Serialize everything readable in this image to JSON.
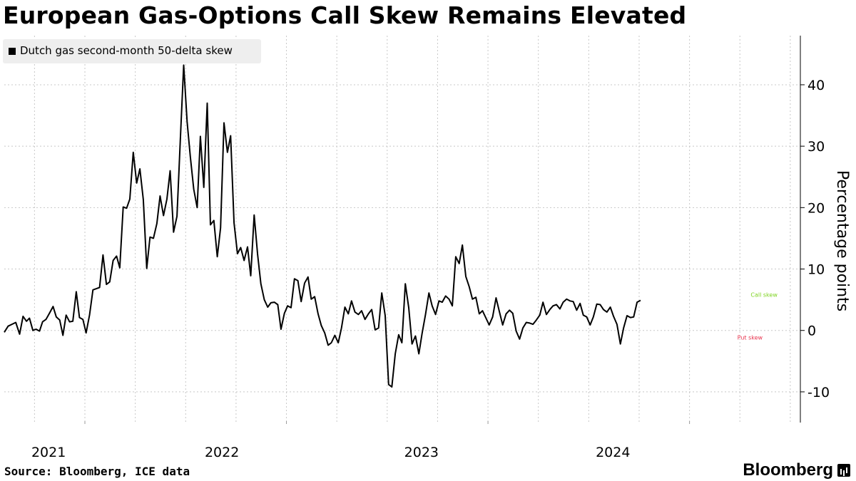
{
  "chart_data": {
    "type": "line",
    "title": "European Gas-Options Call Skew Remains Elevated",
    "xlabel": "",
    "ylabel": "Percentage points",
    "ylim": [
      -15,
      48
    ],
    "yticks": [
      -10,
      0,
      10,
      20,
      30,
      40
    ],
    "xlim": [
      2020.6,
      2024.55
    ],
    "xtick_labels": [
      {
        "label": "2021",
        "x": 2020.82
      },
      {
        "label": "2022",
        "x": 2021.68
      },
      {
        "label": "2023",
        "x": 2022.67
      },
      {
        "label": "2024",
        "x": 2023.62
      }
    ],
    "grid": true,
    "legend_placement": "top-left",
    "annotations": [
      {
        "text": "Call skew",
        "x": 2024.37,
        "y": 5.5,
        "color": "#7ed321"
      },
      {
        "text": "Put skew",
        "x": 2024.3,
        "y": -1.5,
        "color": "#e8344e"
      }
    ],
    "series": [
      {
        "name": "Dutch gas second-month 50-delta skew",
        "color": "#000000",
        "points": [
          [
            2020.6,
            -0.3
          ],
          [
            2020.619,
            0.7
          ],
          [
            2020.638,
            1.0
          ],
          [
            2020.657,
            1.3
          ],
          [
            2020.676,
            -0.6
          ],
          [
            2020.693,
            2.3
          ],
          [
            2020.71,
            1.5
          ],
          [
            2020.725,
            2.0
          ],
          [
            2020.742,
            0.0
          ],
          [
            2020.758,
            0.2
          ],
          [
            2020.775,
            -0.1
          ],
          [
            2020.79,
            1.4
          ],
          [
            2020.807,
            1.8
          ],
          [
            2020.824,
            2.8
          ],
          [
            2020.842,
            3.9
          ],
          [
            2020.858,
            2.2
          ],
          [
            2020.875,
            1.7
          ],
          [
            2020.891,
            -0.8
          ],
          [
            2020.907,
            2.5
          ],
          [
            2020.924,
            1.4
          ],
          [
            2020.94,
            1.5
          ],
          [
            2020.957,
            6.3
          ],
          [
            2020.973,
            2.1
          ],
          [
            2020.99,
            1.8
          ],
          [
            2021.006,
            -0.4
          ],
          [
            2021.023,
            2.5
          ],
          [
            2021.04,
            6.6
          ],
          [
            2021.057,
            6.8
          ],
          [
            2021.073,
            7.0
          ],
          [
            2021.09,
            12.3
          ],
          [
            2021.107,
            7.5
          ],
          [
            2021.123,
            7.9
          ],
          [
            2021.14,
            11.4
          ],
          [
            2021.157,
            12.1
          ],
          [
            2021.173,
            10.2
          ],
          [
            2021.19,
            20.1
          ],
          [
            2021.207,
            19.9
          ],
          [
            2021.223,
            21.4
          ],
          [
            2021.24,
            29.0
          ],
          [
            2021.257,
            24.0
          ],
          [
            2021.273,
            26.3
          ],
          [
            2021.29,
            21.3
          ],
          [
            2021.307,
            10.1
          ],
          [
            2021.323,
            15.2
          ],
          [
            2021.34,
            15.0
          ],
          [
            2021.357,
            17.4
          ],
          [
            2021.373,
            21.9
          ],
          [
            2021.39,
            18.7
          ],
          [
            2021.407,
            21.4
          ],
          [
            2021.423,
            26.0
          ],
          [
            2021.44,
            16.0
          ],
          [
            2021.457,
            18.6
          ],
          [
            2021.473,
            30.8
          ],
          [
            2021.49,
            43.2
          ],
          [
            2021.507,
            34.0
          ],
          [
            2021.523,
            28.3
          ],
          [
            2021.54,
            23.0
          ],
          [
            2021.557,
            20.0
          ],
          [
            2021.573,
            31.6
          ],
          [
            2021.59,
            23.3
          ],
          [
            2021.607,
            37.0
          ],
          [
            2021.623,
            17.2
          ],
          [
            2021.64,
            17.9
          ],
          [
            2021.657,
            12.0
          ],
          [
            2021.673,
            16.7
          ],
          [
            2021.69,
            33.8
          ],
          [
            2021.707,
            29.0
          ],
          [
            2021.723,
            31.7
          ],
          [
            2021.74,
            17.5
          ],
          [
            2021.757,
            12.5
          ],
          [
            2021.773,
            13.5
          ],
          [
            2021.79,
            11.4
          ],
          [
            2021.807,
            13.6
          ],
          [
            2021.823,
            8.9
          ],
          [
            2021.84,
            18.8
          ],
          [
            2021.857,
            12.4
          ],
          [
            2021.873,
            7.6
          ],
          [
            2021.89,
            5.0
          ],
          [
            2021.907,
            3.8
          ],
          [
            2021.923,
            4.5
          ],
          [
            2021.94,
            4.6
          ],
          [
            2021.957,
            4.2
          ],
          [
            2021.973,
            0.2
          ],
          [
            2021.99,
            2.8
          ],
          [
            2022.006,
            4.0
          ],
          [
            2022.023,
            3.7
          ],
          [
            2022.04,
            8.4
          ],
          [
            2022.057,
            8.1
          ],
          [
            2022.073,
            4.7
          ],
          [
            2022.09,
            7.7
          ],
          [
            2022.107,
            8.7
          ],
          [
            2022.123,
            5.1
          ],
          [
            2022.14,
            5.5
          ],
          [
            2022.157,
            2.7
          ],
          [
            2022.173,
            0.8
          ],
          [
            2022.19,
            -0.4
          ],
          [
            2022.207,
            -2.4
          ],
          [
            2022.223,
            -2.0
          ],
          [
            2022.24,
            -0.8
          ],
          [
            2022.257,
            -2.0
          ],
          [
            2022.273,
            0.4
          ],
          [
            2022.29,
            3.8
          ],
          [
            2022.307,
            2.7
          ],
          [
            2022.323,
            4.8
          ],
          [
            2022.34,
            3.0
          ],
          [
            2022.357,
            2.6
          ],
          [
            2022.373,
            3.2
          ],
          [
            2022.39,
            1.8
          ],
          [
            2022.407,
            2.7
          ],
          [
            2022.423,
            3.4
          ],
          [
            2022.44,
            0.1
          ],
          [
            2022.457,
            0.4
          ],
          [
            2022.473,
            6.1
          ],
          [
            2022.49,
            2.4
          ],
          [
            2022.507,
            -8.8
          ],
          [
            2022.523,
            -9.2
          ],
          [
            2022.54,
            -3.8
          ],
          [
            2022.557,
            -0.7
          ],
          [
            2022.573,
            -2.0
          ],
          [
            2022.59,
            7.6
          ],
          [
            2022.607,
            3.7
          ],
          [
            2022.623,
            -2.2
          ],
          [
            2022.64,
            -0.9
          ],
          [
            2022.657,
            -3.8
          ],
          [
            2022.673,
            -0.5
          ],
          [
            2022.69,
            2.6
          ],
          [
            2022.707,
            6.1
          ],
          [
            2022.723,
            4.0
          ],
          [
            2022.74,
            2.6
          ],
          [
            2022.757,
            4.8
          ],
          [
            2022.773,
            4.6
          ],
          [
            2022.79,
            5.6
          ],
          [
            2022.807,
            5.1
          ],
          [
            2022.823,
            4.0
          ],
          [
            2022.84,
            12.0
          ],
          [
            2022.857,
            10.9
          ],
          [
            2022.873,
            13.9
          ],
          [
            2022.89,
            8.8
          ],
          [
            2022.907,
            7.1
          ],
          [
            2022.923,
            5.1
          ],
          [
            2022.94,
            5.4
          ],
          [
            2022.957,
            2.7
          ],
          [
            2022.973,
            3.2
          ],
          [
            2022.99,
            2.0
          ],
          [
            2023.006,
            0.9
          ],
          [
            2023.023,
            2.2
          ],
          [
            2023.04,
            5.3
          ],
          [
            2023.057,
            3.0
          ],
          [
            2023.073,
            0.9
          ],
          [
            2023.09,
            2.7
          ],
          [
            2023.107,
            3.3
          ],
          [
            2023.123,
            2.8
          ],
          [
            2023.14,
            -0.1
          ],
          [
            2023.157,
            -1.4
          ],
          [
            2023.173,
            0.4
          ],
          [
            2023.19,
            1.3
          ],
          [
            2023.207,
            1.2
          ],
          [
            2023.223,
            1.0
          ],
          [
            2023.24,
            1.7
          ],
          [
            2023.257,
            2.5
          ],
          [
            2023.273,
            4.6
          ],
          [
            2023.29,
            2.6
          ],
          [
            2023.307,
            3.4
          ],
          [
            2023.323,
            4.0
          ],
          [
            2023.34,
            4.2
          ],
          [
            2023.357,
            3.5
          ],
          [
            2023.373,
            4.6
          ],
          [
            2023.39,
            5.1
          ],
          [
            2023.407,
            4.8
          ],
          [
            2023.423,
            4.7
          ],
          [
            2023.44,
            3.3
          ],
          [
            2023.457,
            4.4
          ],
          [
            2023.473,
            2.5
          ],
          [
            2023.49,
            2.2
          ],
          [
            2023.507,
            0.9
          ],
          [
            2023.523,
            2.2
          ],
          [
            2023.54,
            4.3
          ],
          [
            2023.557,
            4.2
          ],
          [
            2023.573,
            3.4
          ],
          [
            2023.59,
            3.0
          ],
          [
            2023.607,
            3.8
          ],
          [
            2023.623,
            2.3
          ],
          [
            2023.64,
            1.0
          ],
          [
            2023.657,
            -2.2
          ],
          [
            2023.673,
            0.4
          ],
          [
            2023.69,
            2.4
          ],
          [
            2023.707,
            2.1
          ],
          [
            2023.723,
            2.2
          ],
          [
            2023.74,
            4.6
          ],
          [
            2023.757,
            4.9
          ]
        ]
      }
    ]
  },
  "legend": {
    "label": "Dutch gas second-month 50-delta skew"
  },
  "footer": {
    "source": "Source: Bloomberg, ICE data",
    "brand": "Bloomberg"
  }
}
